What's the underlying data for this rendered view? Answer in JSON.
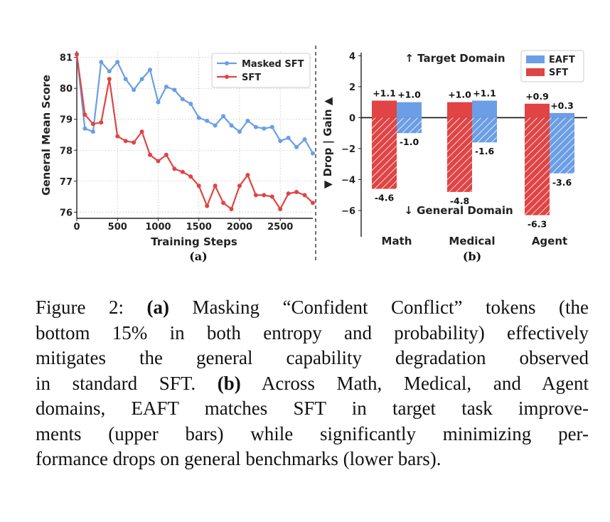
{
  "chart_data": [
    {
      "type": "line",
      "panel_label": "(a)",
      "xlabel": "Training Steps",
      "ylabel": "General Mean Score",
      "xlim": [
        0,
        2900
      ],
      "ylim": [
        75.8,
        81.2
      ],
      "xticks": [
        0,
        500,
        1000,
        1500,
        2000,
        2500
      ],
      "xtick_labels": [
        "0",
        "500",
        "1000",
        "1500",
        "2000",
        "2500"
      ],
      "yticks": [
        76,
        77,
        78,
        79,
        80,
        81
      ],
      "ytick_labels": [
        "76",
        "77",
        "78",
        "79",
        "80",
        "81"
      ],
      "grid": true,
      "legend_position": "top-right",
      "series": [
        {
          "name": "Masked SFT",
          "color": "#6b9ee5",
          "x": [
            0,
            100,
            200,
            300,
            400,
            500,
            600,
            700,
            800,
            900,
            1000,
            1100,
            1200,
            1300,
            1400,
            1500,
            1600,
            1700,
            1800,
            1900,
            2000,
            2100,
            2200,
            2300,
            2400,
            2500,
            2600,
            2700,
            2800,
            2900
          ],
          "y": [
            81.1,
            78.7,
            78.6,
            80.85,
            80.55,
            80.85,
            80.3,
            79.95,
            80.3,
            80.6,
            79.55,
            80.05,
            79.95,
            79.65,
            79.5,
            79.05,
            78.95,
            78.8,
            79.1,
            78.8,
            78.6,
            78.95,
            78.75,
            78.7,
            78.75,
            78.3,
            78.4,
            78.1,
            78.35,
            77.9
          ]
        },
        {
          "name": "SFT",
          "color": "#e04444",
          "x": [
            0,
            100,
            200,
            300,
            400,
            500,
            600,
            700,
            800,
            900,
            1000,
            1100,
            1200,
            1300,
            1400,
            1500,
            1600,
            1700,
            1800,
            1900,
            2000,
            2100,
            2200,
            2300,
            2400,
            2500,
            2600,
            2700,
            2800,
            2900
          ],
          "y": [
            81.1,
            79.15,
            78.85,
            78.9,
            80.3,
            78.45,
            78.3,
            78.25,
            78.6,
            77.85,
            77.65,
            77.85,
            77.4,
            77.3,
            77.15,
            76.85,
            76.2,
            76.85,
            76.3,
            76.1,
            76.85,
            77.2,
            76.55,
            76.55,
            76.5,
            76.1,
            76.6,
            76.65,
            76.55,
            76.3
          ]
        }
      ]
    },
    {
      "type": "bar",
      "panel_label": "(b)",
      "xlabel": "",
      "ylabel": "▼ Drop | Gain ▲",
      "ylim": [
        -7.7,
        4.2
      ],
      "yticks": [
        -6,
        -4,
        -2,
        0,
        2,
        4
      ],
      "ytick_labels": [
        "−6",
        "−4",
        "−2",
        "0",
        "2",
        "4"
      ],
      "categories": [
        "Math",
        "Medical",
        "Agent"
      ],
      "legend_position": "top-right",
      "annotations": {
        "top": "↑ Target Domain",
        "bottom": "↓ General Domain"
      },
      "series": [
        {
          "name": "SFT",
          "color": "#e04444",
          "gain": [
            1.1,
            1.0,
            0.9
          ],
          "drop": [
            -4.6,
            -4.8,
            -6.3
          ],
          "gain_labels": [
            "+1.1",
            "+1.0",
            "+0.9"
          ],
          "drop_labels": [
            "-4.6",
            "-4.8",
            "-6.3"
          ]
        },
        {
          "name": "EAFT",
          "color": "#6b9ee5",
          "gain": [
            1.0,
            1.1,
            0.3
          ],
          "drop": [
            -1.0,
            -1.6,
            -3.6
          ],
          "gain_labels": [
            "+1.0",
            "+1.1",
            "+0.3"
          ],
          "drop_labels": [
            "-1.0",
            "-1.6",
            "-3.6"
          ]
        }
      ],
      "legend_order": [
        "EAFT",
        "SFT"
      ]
    }
  ],
  "caption": {
    "lines": [
      {
        "type": "mixed",
        "parts": [
          {
            "text": "Figure 2: ",
            "b": false
          },
          {
            "text": "(a)",
            "b": true
          },
          {
            "text": " Masking “Confident Conflict” tokens (the",
            "b": false
          }
        ]
      },
      {
        "type": "plain",
        "text": "bottom 15% in both entropy and probability) effectively"
      },
      {
        "type": "plain",
        "text": "mitigates the general capability degradation observed"
      },
      {
        "type": "mixed",
        "parts": [
          {
            "text": "in standard SFT. ",
            "b": false
          },
          {
            "text": "(b)",
            "b": true
          },
          {
            "text": " Across Math, Medical, and Agent",
            "b": false
          }
        ]
      },
      {
        "type": "plain",
        "text": "domains, EAFT matches SFT in target task improve-"
      },
      {
        "type": "plain",
        "text": "ments (upper bars) while significantly minimizing per-"
      },
      {
        "type": "plain",
        "text": "formance drops on general benchmarks (lower bars)."
      }
    ]
  }
}
